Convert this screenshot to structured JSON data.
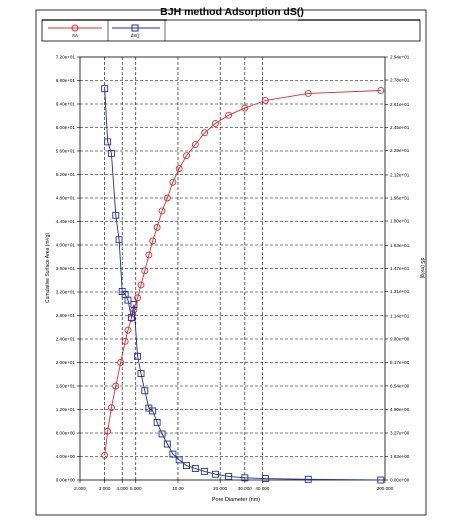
{
  "chart_data": {
    "type": "line",
    "title": "BJH method Adsorption  dS()",
    "xlabel": "Pore Diameter  (nm)",
    "ylabel_left": "Cumulative Surface Area  (m²/g)",
    "ylabel_right": "dS (m²/g)",
    "x_scale": "log",
    "xlim": [
      2,
      300
    ],
    "ylim_left": [
      0,
      72
    ],
    "ylim_right": [
      0,
      29.4
    ],
    "x_ticks": [
      2,
      3,
      4,
      5,
      10,
      20,
      30,
      40,
      300
    ],
    "x_tick_labels": [
      "2.000",
      "3.000",
      "4.000",
      "5.000",
      "10.00",
      "20.000",
      "30.000",
      "40.000",
      "300.000"
    ],
    "y_left_ticks": [
      0,
      4,
      8,
      12,
      16,
      20,
      24,
      28,
      32,
      36,
      40,
      44,
      48,
      52,
      56,
      60,
      64,
      68,
      72
    ],
    "y_left_tick_labels": [
      "0.00e+00",
      "4.00e+00",
      "8.00e+00",
      "1.20e+01",
      "1.60e+01",
      "2.00e+01",
      "2.40e+01",
      "2.80e+01",
      "3.20e+01",
      "3.60e+01",
      "4.00e+01",
      "4.40e+01",
      "4.80e+01",
      "5.20e+01",
      "5.60e+01",
      "6.00e+01",
      "6.40e+01",
      "6.80e+01",
      "7.20e+01"
    ],
    "y_right_ticks": [
      0,
      1.63,
      3.27,
      4.9,
      6.54,
      8.17,
      9.8,
      11.4,
      13.1,
      14.7,
      16.3,
      18,
      19.6,
      21.2,
      22.9,
      24.5,
      26.1,
      27.8,
      29.4
    ],
    "y_right_tick_labels": [
      "0.00e+00",
      "1.63e+00",
      "3.27e+00",
      "4.90e+00",
      "6.54e+00",
      "8.17e+00",
      "9.80e+00",
      "1.14e+01",
      "1.31e+01",
      "1.47e+01",
      "1.63e+01",
      "1.80e+01",
      "1.96e+01",
      "2.12e+01",
      "2.29e+01",
      "2.45e+01",
      "2.61e+01",
      "2.78e+01",
      "2.94e+01"
    ],
    "grid": true,
    "legend_position": "top-left",
    "series": [
      {
        "name": "SA",
        "axis": "left",
        "color": "#e03030",
        "marker": "circle",
        "x": [
          3.0,
          3.15,
          3.35,
          3.6,
          3.9,
          4.2,
          4.4,
          4.65,
          4.85,
          5.15,
          5.45,
          5.8,
          6.2,
          6.6,
          7.1,
          7.7,
          8.4,
          9.2,
          10.2,
          11.5,
          13.3,
          15.5,
          18.5,
          23.0,
          30.0,
          42.0,
          85.0,
          280.0
        ],
        "y": [
          4.2,
          8.3,
          12.3,
          16.0,
          20.0,
          23.6,
          25.5,
          27.5,
          29.0,
          31.0,
          33.2,
          35.6,
          38.3,
          40.7,
          43.0,
          45.8,
          48.0,
          50.7,
          53.0,
          55.2,
          57.1,
          59.1,
          60.7,
          62.1,
          63.3,
          64.6,
          65.8,
          66.3
        ]
      },
      {
        "name": "dS()",
        "axis": "right",
        "color": "#1f2fa8",
        "marker": "square",
        "x": [
          3.0,
          3.15,
          3.35,
          3.6,
          3.8,
          4.0,
          4.2,
          4.4,
          4.65,
          4.85,
          5.15,
          5.45,
          5.8,
          6.2,
          6.6,
          7.1,
          7.7,
          8.4,
          9.2,
          10.2,
          11.5,
          13.3,
          15.5,
          18.5,
          23.0,
          30.0,
          42.0,
          85.0,
          280.0
        ],
        "y": [
          27.2,
          23.5,
          22.7,
          18.4,
          16.7,
          13.1,
          12.9,
          12.5,
          11.3,
          12.2,
          8.6,
          7.4,
          6.2,
          5.0,
          4.8,
          4.0,
          3.2,
          2.5,
          1.8,
          1.4,
          1.0,
          0.8,
          0.6,
          0.4,
          0.25,
          0.15,
          0.1,
          0.05,
          0.0
        ]
      }
    ]
  }
}
